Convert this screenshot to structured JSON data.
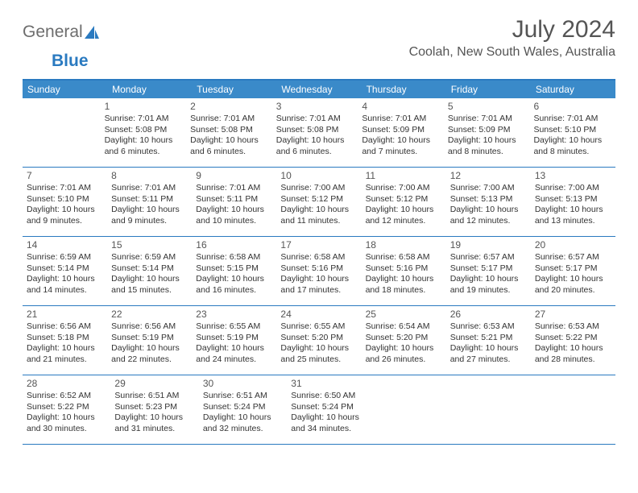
{
  "logo": {
    "part1": "General",
    "part2": "Blue"
  },
  "title": {
    "month": "July 2024",
    "location": "Coolah, New South Wales, Australia"
  },
  "colors": {
    "header_bg": "#3a8ac9",
    "header_text": "#ffffff",
    "border": "#2a7ac0",
    "body_text": "#333333",
    "title_text": "#555555",
    "logo_gray": "#6d6d6d",
    "logo_blue": "#2a7ac0",
    "background": "#ffffff"
  },
  "typography": {
    "month_fontsize": 30,
    "location_fontsize": 16,
    "weekday_fontsize": 12,
    "daynum_fontsize": 12,
    "body_fontsize": 10.5,
    "logo_fontsize": 21
  },
  "weekdays": [
    "Sunday",
    "Monday",
    "Tuesday",
    "Wednesday",
    "Thursday",
    "Friday",
    "Saturday"
  ],
  "weeks": [
    [
      null,
      {
        "n": "1",
        "sunrise": "7:01 AM",
        "sunset": "5:08 PM",
        "dh": "10",
        "dm": "6"
      },
      {
        "n": "2",
        "sunrise": "7:01 AM",
        "sunset": "5:08 PM",
        "dh": "10",
        "dm": "6"
      },
      {
        "n": "3",
        "sunrise": "7:01 AM",
        "sunset": "5:08 PM",
        "dh": "10",
        "dm": "6"
      },
      {
        "n": "4",
        "sunrise": "7:01 AM",
        "sunset": "5:09 PM",
        "dh": "10",
        "dm": "7"
      },
      {
        "n": "5",
        "sunrise": "7:01 AM",
        "sunset": "5:09 PM",
        "dh": "10",
        "dm": "8"
      },
      {
        "n": "6",
        "sunrise": "7:01 AM",
        "sunset": "5:10 PM",
        "dh": "10",
        "dm": "8"
      }
    ],
    [
      {
        "n": "7",
        "sunrise": "7:01 AM",
        "sunset": "5:10 PM",
        "dh": "10",
        "dm": "9"
      },
      {
        "n": "8",
        "sunrise": "7:01 AM",
        "sunset": "5:11 PM",
        "dh": "10",
        "dm": "9"
      },
      {
        "n": "9",
        "sunrise": "7:01 AM",
        "sunset": "5:11 PM",
        "dh": "10",
        "dm": "10"
      },
      {
        "n": "10",
        "sunrise": "7:00 AM",
        "sunset": "5:12 PM",
        "dh": "10",
        "dm": "11"
      },
      {
        "n": "11",
        "sunrise": "7:00 AM",
        "sunset": "5:12 PM",
        "dh": "10",
        "dm": "12"
      },
      {
        "n": "12",
        "sunrise": "7:00 AM",
        "sunset": "5:13 PM",
        "dh": "10",
        "dm": "12"
      },
      {
        "n": "13",
        "sunrise": "7:00 AM",
        "sunset": "5:13 PM",
        "dh": "10",
        "dm": "13"
      }
    ],
    [
      {
        "n": "14",
        "sunrise": "6:59 AM",
        "sunset": "5:14 PM",
        "dh": "10",
        "dm": "14"
      },
      {
        "n": "15",
        "sunrise": "6:59 AM",
        "sunset": "5:14 PM",
        "dh": "10",
        "dm": "15"
      },
      {
        "n": "16",
        "sunrise": "6:58 AM",
        "sunset": "5:15 PM",
        "dh": "10",
        "dm": "16"
      },
      {
        "n": "17",
        "sunrise": "6:58 AM",
        "sunset": "5:16 PM",
        "dh": "10",
        "dm": "17"
      },
      {
        "n": "18",
        "sunrise": "6:58 AM",
        "sunset": "5:16 PM",
        "dh": "10",
        "dm": "18"
      },
      {
        "n": "19",
        "sunrise": "6:57 AM",
        "sunset": "5:17 PM",
        "dh": "10",
        "dm": "19"
      },
      {
        "n": "20",
        "sunrise": "6:57 AM",
        "sunset": "5:17 PM",
        "dh": "10",
        "dm": "20"
      }
    ],
    [
      {
        "n": "21",
        "sunrise": "6:56 AM",
        "sunset": "5:18 PM",
        "dh": "10",
        "dm": "21"
      },
      {
        "n": "22",
        "sunrise": "6:56 AM",
        "sunset": "5:19 PM",
        "dh": "10",
        "dm": "22"
      },
      {
        "n": "23",
        "sunrise": "6:55 AM",
        "sunset": "5:19 PM",
        "dh": "10",
        "dm": "24"
      },
      {
        "n": "24",
        "sunrise": "6:55 AM",
        "sunset": "5:20 PM",
        "dh": "10",
        "dm": "25"
      },
      {
        "n": "25",
        "sunrise": "6:54 AM",
        "sunset": "5:20 PM",
        "dh": "10",
        "dm": "26"
      },
      {
        "n": "26",
        "sunrise": "6:53 AM",
        "sunset": "5:21 PM",
        "dh": "10",
        "dm": "27"
      },
      {
        "n": "27",
        "sunrise": "6:53 AM",
        "sunset": "5:22 PM",
        "dh": "10",
        "dm": "28"
      }
    ],
    [
      {
        "n": "28",
        "sunrise": "6:52 AM",
        "sunset": "5:22 PM",
        "dh": "10",
        "dm": "30"
      },
      {
        "n": "29",
        "sunrise": "6:51 AM",
        "sunset": "5:23 PM",
        "dh": "10",
        "dm": "31"
      },
      {
        "n": "30",
        "sunrise": "6:51 AM",
        "sunset": "5:24 PM",
        "dh": "10",
        "dm": "32"
      },
      {
        "n": "31",
        "sunrise": "6:50 AM",
        "sunset": "5:24 PM",
        "dh": "10",
        "dm": "34"
      },
      null,
      null,
      null
    ]
  ],
  "labels": {
    "sunrise": "Sunrise:",
    "sunset": "Sunset:",
    "daylight": "Daylight:",
    "hours": "hours",
    "and": "and",
    "minutes": "minutes."
  }
}
